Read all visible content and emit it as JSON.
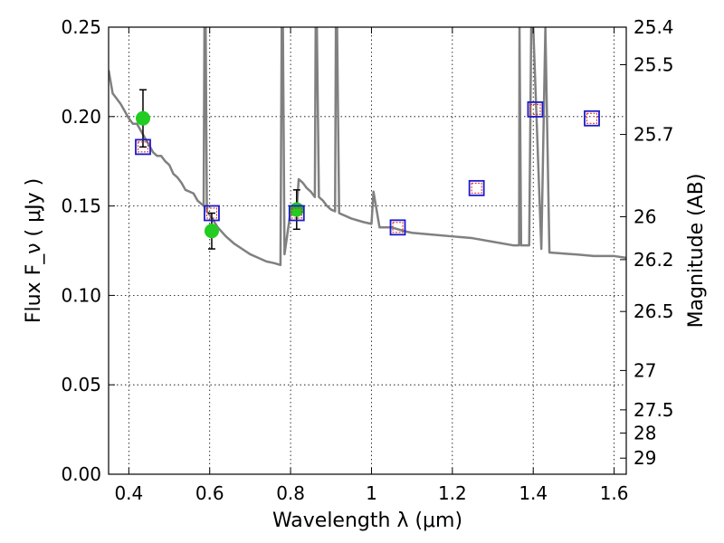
{
  "chart_data": {
    "type": "scatter",
    "title": "",
    "xlabel": "Wavelength  λ (μm)",
    "ylabel": "Flux  F_ν  ( μJy )",
    "ylabel_right": "Magnitude (AB)",
    "xlim": [
      0.35,
      1.63
    ],
    "ylim": [
      0.0,
      0.25
    ],
    "grid": true,
    "x_ticks": [
      0.4,
      0.6,
      0.8,
      1.0,
      1.2,
      1.4,
      1.6
    ],
    "x_tick_labels": [
      "0.4",
      "0.6",
      "0.8",
      "1",
      "1.2",
      "1.4",
      "1.6"
    ],
    "y_ticks": [
      0.0,
      0.05,
      0.1,
      0.15,
      0.2,
      0.25
    ],
    "y_tick_labels": [
      "0.00",
      "0.05",
      "0.10",
      "0.15",
      "0.20",
      "0.25"
    ],
    "right_ticks": [
      {
        "label": "25.4",
        "flux": 0.25
      },
      {
        "label": "25.5",
        "flux": 0.229
      },
      {
        "label": "25.7",
        "flux": 0.19
      },
      {
        "label": "26",
        "flux": 0.144
      },
      {
        "label": "26.2",
        "flux": 0.12
      },
      {
        "label": "26.5",
        "flux": 0.091
      },
      {
        "label": "27",
        "flux": 0.058
      },
      {
        "label": "27.5",
        "flux": 0.036
      },
      {
        "label": "28",
        "flux": 0.023
      },
      {
        "label": "29",
        "flux": 0.009
      }
    ],
    "colors": {
      "model": "#808080",
      "observed": "#22cc22",
      "model_box": "#1a1acc",
      "model_box_inner": "#dd2222",
      "errorbar": "#000000"
    },
    "series": [
      {
        "kind": "line",
        "x": [
          0.35,
          0.36,
          0.37,
          0.38,
          0.39,
          0.4,
          0.41,
          0.42,
          0.43,
          0.44,
          0.45,
          0.46,
          0.47,
          0.48,
          0.49,
          0.5,
          0.51,
          0.52,
          0.53,
          0.54,
          0.55,
          0.56,
          0.57,
          0.58,
          0.585,
          0.587,
          0.59,
          0.593,
          0.6,
          0.62,
          0.64,
          0.66,
          0.68,
          0.7,
          0.72,
          0.74,
          0.76,
          0.775,
          0.778,
          0.781,
          0.785,
          0.8,
          0.815,
          0.82,
          0.83,
          0.84,
          0.85,
          0.86,
          0.862,
          0.865,
          0.87,
          0.88,
          0.89,
          0.9,
          0.91,
          0.912,
          0.915,
          0.92,
          0.95,
          0.98,
          1.0,
          1.005,
          1.02,
          1.05,
          1.08,
          1.1,
          1.15,
          1.2,
          1.25,
          1.3,
          1.35,
          1.365,
          1.366,
          1.37,
          1.38,
          1.39,
          1.395,
          1.4,
          1.42,
          1.43,
          1.44,
          1.5,
          1.55,
          1.6,
          1.63
        ],
        "y": [
          0.226,
          0.213,
          0.21,
          0.207,
          0.203,
          0.199,
          0.196,
          0.196,
          0.192,
          0.188,
          0.184,
          0.18,
          0.178,
          0.178,
          0.175,
          0.173,
          0.168,
          0.166,
          0.163,
          0.159,
          0.158,
          0.157,
          0.153,
          0.151,
          0.15,
          0.25,
          0.25,
          0.147,
          0.145,
          0.138,
          0.133,
          0.129,
          0.126,
          0.123,
          0.121,
          0.119,
          0.118,
          0.117,
          0.25,
          0.25,
          0.123,
          0.147,
          0.147,
          0.165,
          0.163,
          0.16,
          0.158,
          0.155,
          0.25,
          0.25,
          0.155,
          0.153,
          0.15,
          0.148,
          0.147,
          0.25,
          0.25,
          0.146,
          0.143,
          0.141,
          0.14,
          0.158,
          0.138,
          0.138,
          0.136,
          0.135,
          0.134,
          0.133,
          0.132,
          0.13,
          0.128,
          0.128,
          0.25,
          0.128,
          0.128,
          0.128,
          0.25,
          0.25,
          0.126,
          0.25,
          0.124,
          0.123,
          0.122,
          0.122,
          0.121
        ]
      },
      {
        "kind": "errorbar",
        "x": [
          0.435,
          0.605,
          0.815
        ],
        "y": [
          0.199,
          0.136,
          0.148
        ],
        "yerr": [
          0.016,
          0.01,
          0.011
        ]
      },
      {
        "kind": "box",
        "x": [
          0.435,
          0.605,
          0.815,
          1.065,
          1.26,
          1.405,
          1.545
        ],
        "y": [
          0.183,
          0.146,
          0.146,
          0.138,
          0.16,
          0.204,
          0.199
        ]
      }
    ]
  }
}
